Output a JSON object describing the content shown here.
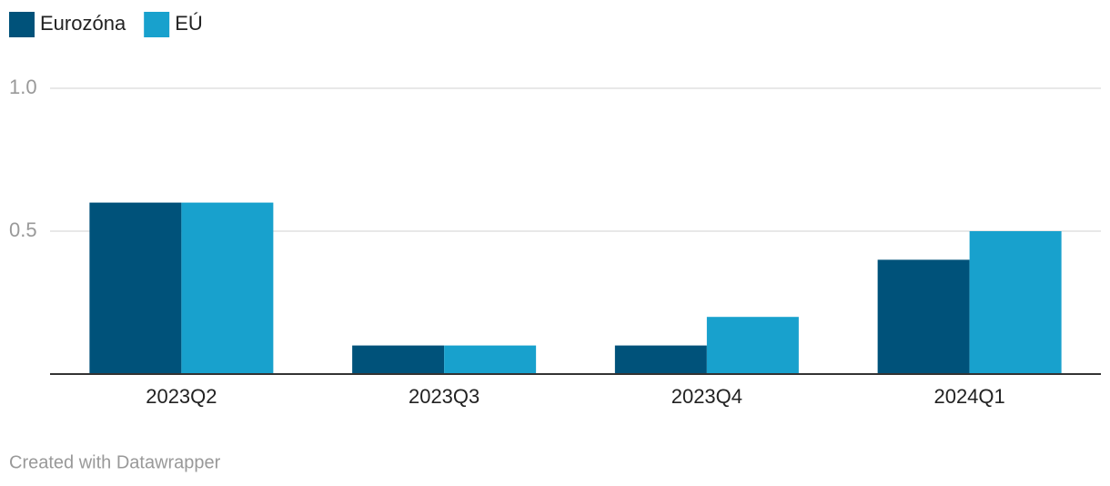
{
  "chart_data": {
    "type": "bar",
    "categories": [
      "2023Q2",
      "2023Q3",
      "2023Q4",
      "2024Q1"
    ],
    "series": [
      {
        "name": "Eurozóna",
        "color": "#00527a",
        "values": [
          0.6,
          0.1,
          0.1,
          0.4
        ]
      },
      {
        "name": "EÚ",
        "color": "#18a1cd",
        "values": [
          0.6,
          0.1,
          0.2,
          0.5
        ]
      }
    ],
    "ylim": [
      0,
      1
    ],
    "yticks": [
      0.5,
      {
        "value": 1,
        "label": "1.0"
      }
    ],
    "grid": true,
    "legend": "top-left",
    "credit": "Created with Datawrapper"
  }
}
